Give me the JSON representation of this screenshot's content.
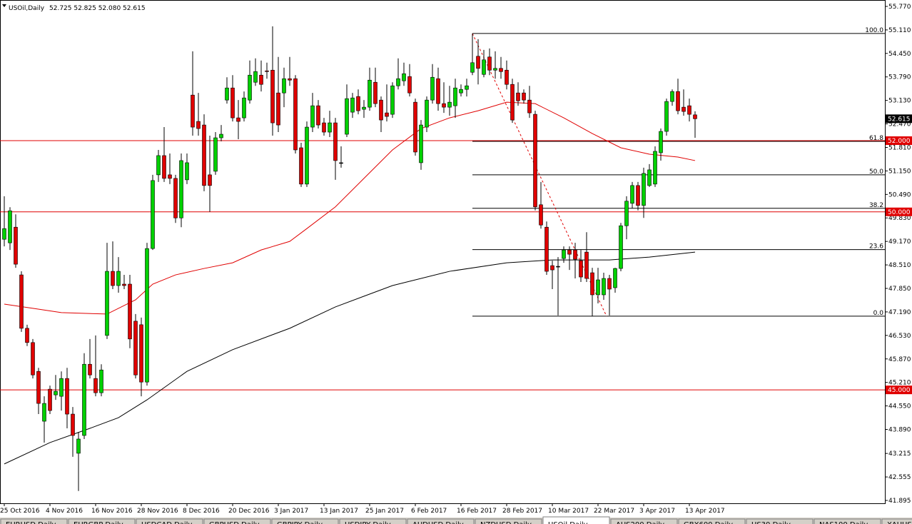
{
  "chart_data": {
    "type": "candlestick",
    "symbol": "USOil,Daily",
    "ohlc_label": "52.725 52.825 52.080 52.615",
    "last_price_label": "52.615",
    "categories": [
      "25 Oct 2016",
      null,
      null,
      null,
      null,
      null,
      null,
      null,
      "4 Nov 2016",
      null,
      null,
      null,
      null,
      null,
      null,
      null,
      "16 Nov 2016",
      null,
      null,
      null,
      null,
      null,
      null,
      null,
      "28 Nov 2016",
      null,
      null,
      null,
      null,
      null,
      null,
      null,
      "8 Dec 2016",
      null,
      null,
      null,
      null,
      null,
      null,
      null,
      "20 Dec 2016",
      null,
      null,
      null,
      null,
      null,
      null,
      null,
      "3 Jan 2017",
      null,
      null,
      null,
      null,
      null,
      null,
      null,
      "13 Jan 2017",
      null,
      null,
      null,
      null,
      null,
      null,
      null,
      "25 Jan 2017",
      null,
      null,
      null,
      null,
      null,
      null,
      null,
      "6 Feb 2017",
      null,
      null,
      null,
      null,
      null,
      null,
      null,
      "16 Feb 2017",
      null,
      null,
      null,
      null,
      null,
      null,
      null,
      "28 Feb 2017",
      null,
      null,
      null,
      null,
      null,
      null,
      null,
      "10 Mar 2017",
      null,
      null,
      null,
      null,
      null,
      null,
      null,
      "22 Mar 2017",
      null,
      null,
      null,
      null,
      null,
      null,
      null,
      "3 Apr 2017",
      null,
      null,
      null,
      null,
      null,
      null,
      null,
      "13 Apr 2017",
      null
    ],
    "open": [
      49.23,
      49.13,
      49.57,
      48.23,
      46.73,
      46.33,
      45.52,
      44.12,
      45.02,
      44.86,
      44.82,
      45.32,
      44.32,
      43.22,
      43.72,
      45.72,
      45.32,
      44.92,
      46.53,
      48.33,
      47.93,
      47.97,
      47.97,
      46.93,
      46.83,
      45.22,
      48.97,
      51.04,
      51.58,
      51.04,
      50.94,
      49.83,
      50.9,
      53.28,
      52.54,
      52.44,
      51.04,
      51.14,
      52.08,
      53.14,
      53.48,
      52.64,
      52.64,
      53.14,
      53.64,
      53.84,
      53.96,
      53.98,
      53.34,
      53.34,
      53.74,
      53.74,
      51.8,
      50.78,
      52.38,
      52.98,
      52.5,
      52.24,
      52.5,
      51.38,
      52.18,
      52.8,
      53.24,
      52.88,
      52.94,
      53.64,
      53.14,
      52.78,
      52.74,
      53.54,
      53.68,
      53.8,
      53.08,
      51.38,
      52.38,
      53.14,
      53.74,
      53.04,
      52.94,
      52.98,
      53.34,
      53.44,
      53.92,
      54.37,
      53.86,
      54.35,
      53.98,
      54.03,
      53.98,
      53.58,
      53.34,
      53.34,
      53.14,
      52.74,
      50.2,
      49.57,
      48.49,
      48.47,
      48.69,
      48.93,
      48.93,
      48.63,
      48.87,
      48.29,
      47.67,
      47.67,
      48.13,
      47.87,
      48.41,
      49.61,
      50.24,
      50.74,
      50.18,
      50.74,
      50.78,
      51.66,
      52.26,
      53.1,
      53.38,
      52.94,
      52.98,
      52.725
    ],
    "high": [
      50.44,
      50.13,
      49.93,
      48.33,
      46.83,
      46.43,
      45.62,
      44.82,
      45.12,
      45.42,
      45.52,
      45.62,
      44.52,
      43.82,
      46.03,
      46.43,
      46.53,
      45.72,
      49.13,
      49.17,
      48.73,
      48.23,
      48.23,
      47.13,
      47.03,
      49.13,
      51.04,
      51.74,
      52.38,
      51.64,
      51.04,
      51.64,
      51.64,
      54.51,
      53.34,
      52.74,
      52.14,
      52.24,
      52.44,
      53.78,
      53.84,
      53.14,
      53.38,
      54.25,
      54.31,
      54.25,
      54.19,
      55.21,
      54.35,
      54.05,
      54.35,
      53.84,
      51.94,
      52.54,
      53.34,
      53.14,
      52.64,
      52.84,
      52.64,
      51.84,
      53.58,
      53.34,
      53.44,
      53.14,
      54.05,
      54.05,
      53.24,
      53.58,
      53.64,
      54.31,
      54.19,
      54.15,
      53.18,
      52.58,
      53.24,
      54.15,
      54.05,
      53.64,
      53.54,
      53.74,
      53.58,
      53.74,
      55.01,
      54.85,
      54.55,
      54.59,
      54.51,
      54.35,
      54.25,
      53.74,
      53.64,
      53.44,
      53.54,
      52.84,
      50.84,
      49.73,
      48.63,
      48.73,
      49.03,
      49.03,
      49.13,
      48.93,
      49.43,
      48.43,
      48.43,
      48.29,
      48.23,
      48.43,
      49.69,
      50.44,
      50.84,
      50.84,
      51.24,
      51.34,
      51.84,
      52.34,
      53.18,
      53.44,
      53.74,
      53.44,
      53.18,
      52.825
    ],
    "low": [
      49.03,
      48.93,
      48.43,
      46.63,
      46.23,
      45.32,
      44.32,
      43.52,
      44.32,
      44.72,
      44.42,
      43.92,
      43.12,
      42.16,
      43.62,
      45.32,
      44.82,
      44.82,
      46.43,
      47.83,
      47.73,
      47.83,
      46.17,
      45.32,
      44.82,
      45.12,
      48.93,
      50.84,
      50.84,
      50.78,
      49.69,
      49.57,
      50.78,
      52.14,
      52.14,
      50.58,
      50.0,
      51.04,
      51.98,
      53.04,
      52.54,
      52.04,
      52.54,
      53.04,
      53.54,
      53.38,
      53.74,
      52.14,
      52.24,
      52.94,
      53.54,
      51.64,
      50.7,
      50.7,
      52.24,
      52.34,
      52.14,
      52.1,
      50.9,
      51.24,
      52.1,
      52.64,
      52.74,
      52.64,
      52.84,
      52.94,
      52.24,
      52.54,
      52.64,
      53.44,
      53.54,
      53.24,
      51.58,
      51.18,
      52.24,
      53.04,
      52.84,
      52.78,
      52.7,
      52.64,
      53.24,
      53.24,
      53.84,
      53.58,
      53.78,
      53.84,
      53.74,
      53.74,
      53.44,
      52.5,
      52.98,
      53.04,
      52.64,
      50.04,
      49.53,
      48.23,
      47.83,
      47.09,
      48.57,
      48.37,
      48.13,
      48.03,
      48.03,
      47.07,
      47.43,
      47.53,
      47.09,
      47.73,
      48.33,
      49.23,
      50.1,
      50.04,
      49.83,
      50.7,
      50.7,
      51.44,
      52.14,
      52.98,
      52.74,
      52.7,
      52.54,
      52.08
    ],
    "close": [
      49.53,
      50.03,
      48.53,
      46.73,
      46.33,
      45.42,
      44.62,
      44.62,
      44.42,
      44.96,
      45.32,
      44.32,
      43.72,
      43.62,
      45.72,
      45.42,
      44.92,
      45.56,
      48.33,
      47.93,
      48.33,
      47.93,
      46.43,
      45.42,
      45.22,
      48.97,
      50.88,
      51.58,
      50.94,
      50.94,
      49.83,
      51.44,
      51.38,
      52.38,
      52.34,
      50.74,
      50.74,
      52.08,
      52.18,
      53.48,
      52.64,
      52.54,
      53.2,
      53.84,
      53.94,
      53.58,
      53.94,
      52.5,
      52.44,
      53.74,
      53.7,
      51.74,
      50.78,
      52.38,
      52.98,
      52.44,
      52.24,
      52.5,
      51.44,
      51.38,
      53.18,
      53.2,
      52.84,
      52.94,
      53.7,
      53.04,
      52.58,
      52.68,
      53.54,
      53.74,
      53.88,
      53.34,
      51.68,
      52.44,
      53.14,
      53.78,
      53.04,
      52.94,
      53.08,
      53.48,
      53.44,
      53.54,
      54.19,
      54.03,
      54.27,
      53.98,
      54.03,
      53.94,
      53.58,
      52.58,
      53.12,
      53.14,
      52.78,
      50.14,
      49.63,
      48.33,
      48.37,
      48.47,
      48.93,
      48.81,
      48.67,
      48.17,
      48.13,
      47.67,
      48.09,
      48.13,
      47.83,
      48.41,
      49.61,
      50.3,
      50.74,
      50.18,
      51.08,
      51.18,
      51.7,
      52.26,
      53.1,
      53.38,
      52.84,
      52.82,
      52.74,
      52.615
    ],
    "up_color": "#00d000",
    "down_color": "#e00000",
    "moving_averages": [
      {
        "color": "#e00000",
        "x": [
          0,
          5,
          10,
          18,
          23,
          26,
          30,
          35,
          40,
          45,
          50,
          53,
          58,
          63,
          68,
          73,
          78,
          83,
          88,
          93,
          98,
          103,
          108,
          113,
          118,
          121
        ],
        "values": [
          47.41,
          47.29,
          47.17,
          47.13,
          47.53,
          47.97,
          48.23,
          48.41,
          48.57,
          48.93,
          49.17,
          49.53,
          50.14,
          50.94,
          51.74,
          52.34,
          52.64,
          52.84,
          53.08,
          53.04,
          52.64,
          52.2,
          51.8,
          51.62,
          51.54,
          51.44
        ]
      },
      {
        "color": "#000000",
        "x": [
          0,
          8,
          15,
          20,
          25,
          32,
          40,
          50,
          58,
          68,
          78,
          88,
          96,
          106,
          113,
          121
        ],
        "values": [
          42.92,
          43.52,
          43.92,
          44.22,
          44.72,
          45.52,
          46.13,
          46.73,
          47.33,
          47.93,
          48.33,
          48.57,
          48.65,
          48.65,
          48.73,
          48.87
        ]
      }
    ],
    "levels": [
      {
        "value": 52,
        "label": "52.000"
      },
      {
        "value": 50,
        "label": "50.000"
      },
      {
        "value": 45,
        "label": "45.000"
      }
    ],
    "level_color": "#e00000",
    "fib_levels": [
      {
        "label": "100.0",
        "value": 55.01
      },
      {
        "label": "61.8",
        "value": 51.98
      },
      {
        "label": "50.0",
        "value": 51.04
      },
      {
        "label": "38.2",
        "value": 50.1
      },
      {
        "label": "23.6",
        "value": 48.94
      },
      {
        "label": "0.0",
        "value": 47.07
      }
    ],
    "ylim": [
      41.815,
      55.91
    ],
    "yticks": [
      {
        "value": 55.77,
        "label": "55.770"
      },
      {
        "value": 55.11,
        "label": "55.110"
      },
      {
        "value": 54.45,
        "label": "54.450"
      },
      {
        "value": 53.79,
        "label": "53.790"
      },
      {
        "value": 53.13,
        "label": "53.130"
      },
      {
        "value": 52.47,
        "label": "52.470"
      },
      {
        "value": 51.81,
        "label": "51.810"
      },
      {
        "value": 51.15,
        "label": "51.150"
      },
      {
        "value": 50.49,
        "label": "50.490"
      },
      {
        "value": 49.83,
        "label": "49.830"
      },
      {
        "value": 49.17,
        "label": "49.170"
      },
      {
        "value": 48.51,
        "label": "48.510"
      },
      {
        "value": 47.85,
        "label": "47.850"
      },
      {
        "value": 47.19,
        "label": "47.190"
      },
      {
        "value": 46.53,
        "label": "46.530"
      },
      {
        "value": 45.87,
        "label": "45.870"
      },
      {
        "value": 45.21,
        "label": "45.210"
      },
      {
        "value": 44.55,
        "label": "44.550"
      },
      {
        "value": 43.89,
        "label": "43.890"
      },
      {
        "value": 43.215,
        "label": "43.215"
      },
      {
        "value": 42.555,
        "label": "42.555"
      },
      {
        "value": 41.895,
        "label": "41.895"
      }
    ],
    "tabs": [
      "EURUSD,Daily",
      "EURGBP,Daily",
      "USDCAD,Daily",
      "GBPUSD,Daily",
      "GBPJPY,Daily",
      "USDJPY,Daily",
      "AUDUSD,Daily",
      "NZDUSD,Daily",
      "USOil,Daily",
      "AUS200,Daily",
      "GBX600,Daily",
      "US30,Daily",
      "NAS100,Daily",
      "XAUUSD,Daily"
    ],
    "active_tab": 8
  }
}
